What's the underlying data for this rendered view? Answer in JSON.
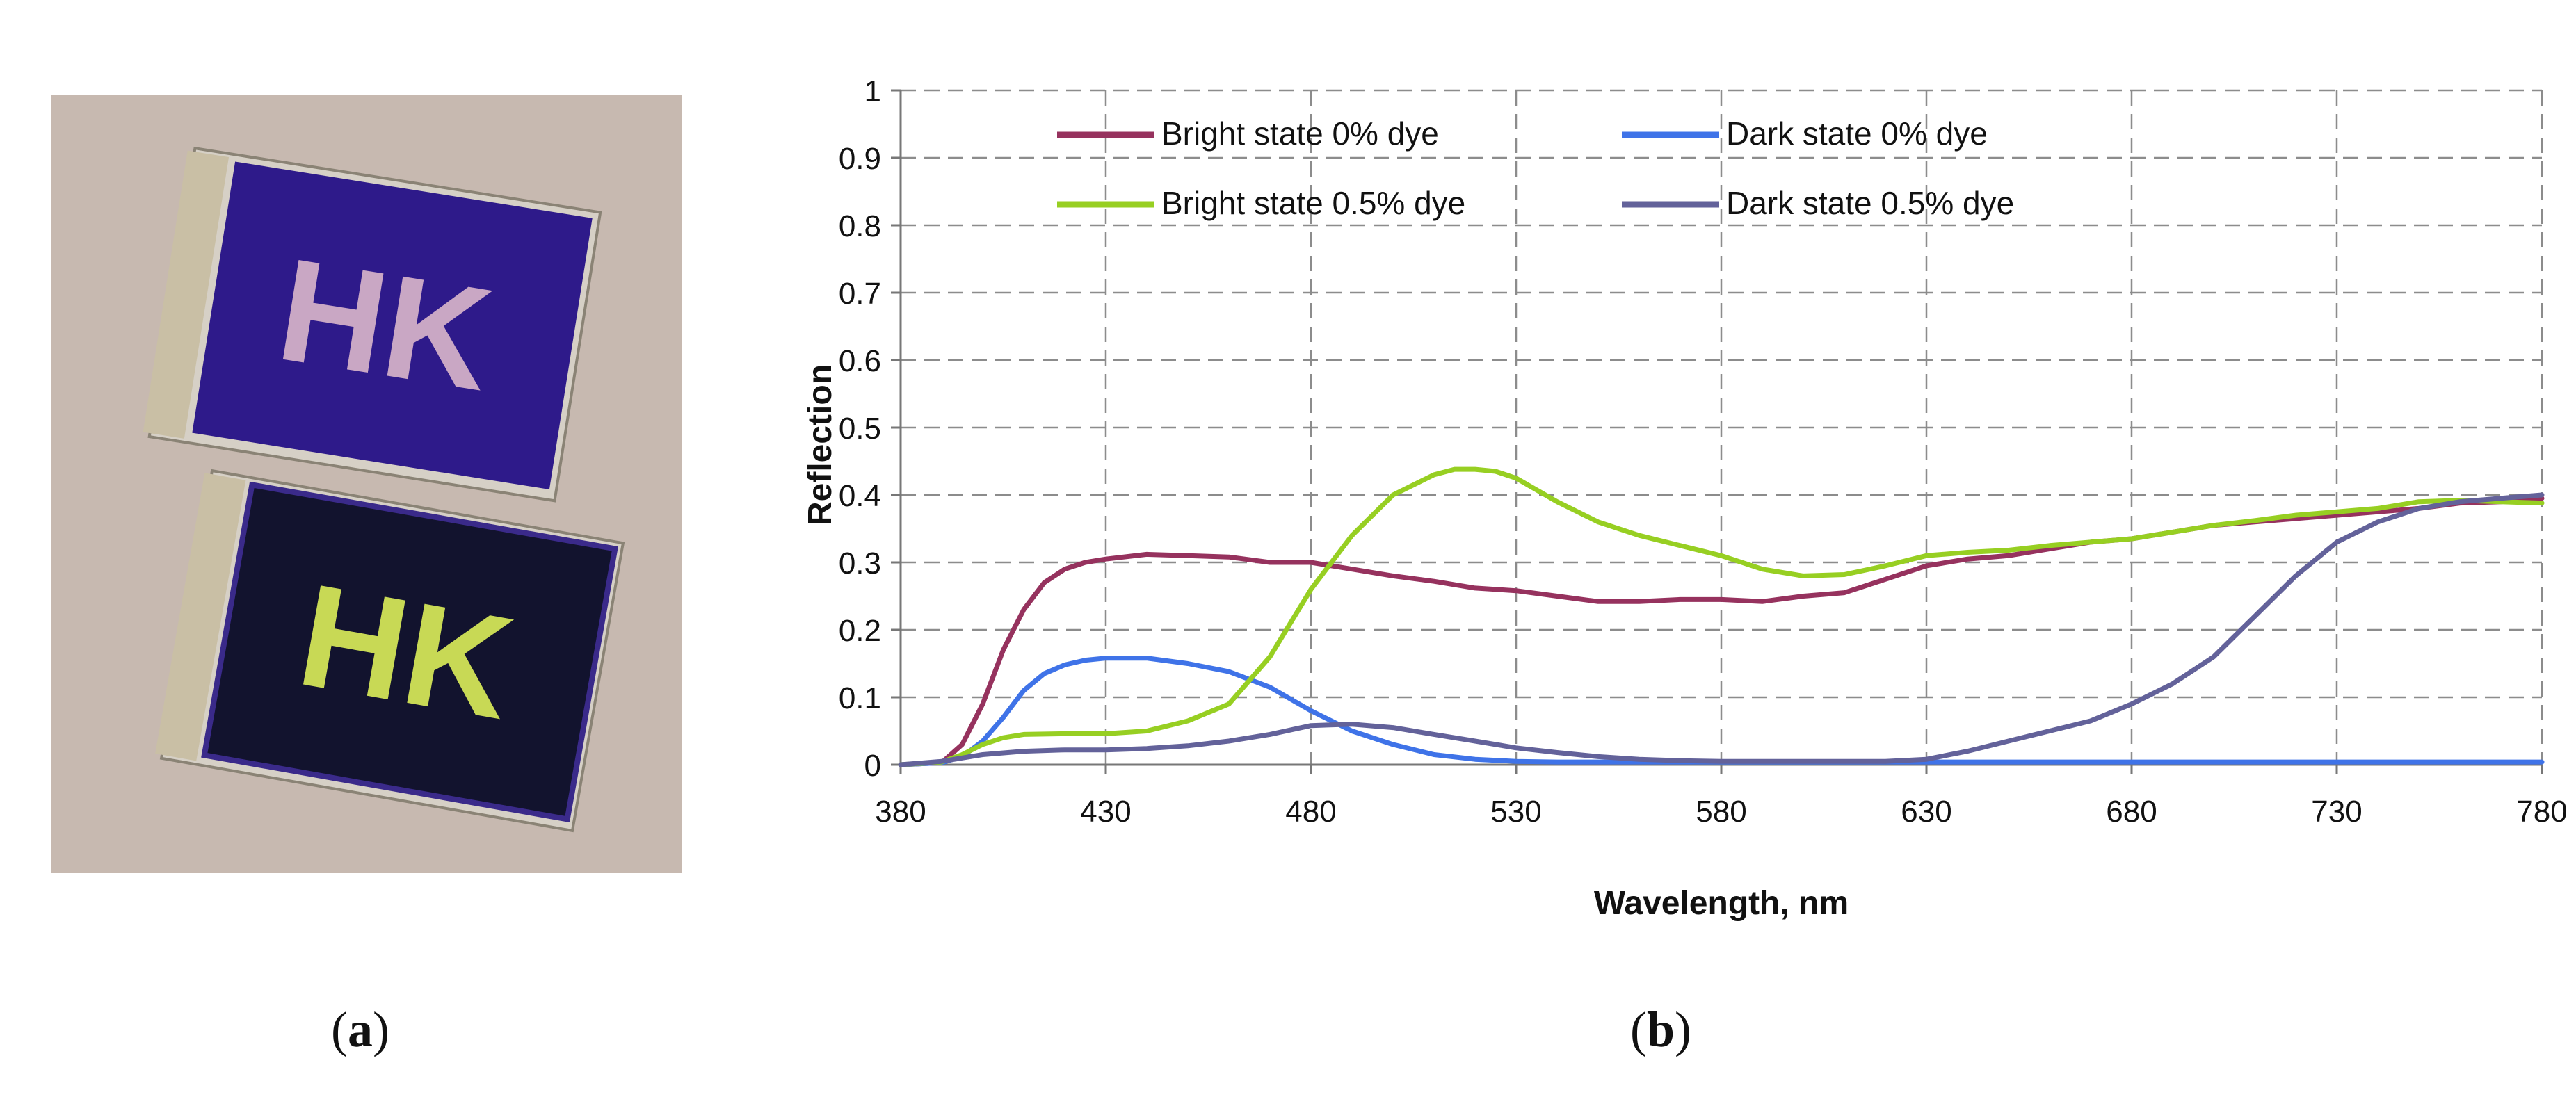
{
  "panels": {
    "a": {
      "caption_letter": "a",
      "sample_text_top": "HK",
      "sample_text_bottom": "HK"
    },
    "b": {
      "caption_letter": "b"
    }
  },
  "colors": {
    "background_photo": "#c7b9b0",
    "cell_blue": "#2e1a8a",
    "cell_dark": "#12132e",
    "bright_0": "#96325e",
    "dark_0": "#3f73e8",
    "bright_05": "#97cf22",
    "dark_05": "#63629a"
  },
  "chart_data": {
    "type": "line",
    "xlabel": "Wavelength, nm",
    "ylabel": "Reflection",
    "xlim": [
      380,
      780
    ],
    "ylim": [
      0,
      1
    ],
    "xticks": [
      "380",
      "430",
      "480",
      "530",
      "580",
      "630",
      "680",
      "730",
      "780"
    ],
    "yticks": [
      "0",
      "0.1",
      "0.2",
      "0.3",
      "0.4",
      "0.5",
      "0.6",
      "0.7",
      "0.8",
      "0.9",
      "1"
    ],
    "grid": true,
    "legend_position": "top",
    "series": [
      {
        "name": "Bright state 0% dye",
        "color": "#96325e",
        "x": [
          380,
          390,
          395,
          400,
          405,
          410,
          415,
          420,
          425,
          430,
          440,
          450,
          460,
          470,
          480,
          490,
          500,
          510,
          520,
          530,
          540,
          550,
          560,
          570,
          580,
          590,
          600,
          610,
          620,
          630,
          640,
          650,
          660,
          670,
          680,
          690,
          700,
          710,
          720,
          730,
          740,
          750,
          760,
          770,
          780
        ],
        "y": [
          0,
          0.003,
          0.03,
          0.09,
          0.17,
          0.23,
          0.27,
          0.29,
          0.3,
          0.305,
          0.312,
          0.31,
          0.308,
          0.3,
          0.3,
          0.29,
          0.28,
          0.272,
          0.262,
          0.258,
          0.25,
          0.242,
          0.242,
          0.245,
          0.245,
          0.242,
          0.25,
          0.255,
          0.275,
          0.295,
          0.305,
          0.31,
          0.32,
          0.33,
          0.335,
          0.345,
          0.355,
          0.36,
          0.365,
          0.37,
          0.375,
          0.38,
          0.388,
          0.39,
          0.395
        ]
      },
      {
        "name": "Dark state 0% dye",
        "color": "#3f73e8",
        "x": [
          380,
          390,
          395,
          400,
          405,
          410,
          415,
          420,
          425,
          430,
          440,
          450,
          460,
          470,
          480,
          490,
          500,
          510,
          520,
          530,
          540,
          550,
          560,
          570,
          580,
          600,
          630,
          650,
          680,
          700,
          730,
          780
        ],
        "y": [
          0,
          0.003,
          0.012,
          0.035,
          0.07,
          0.11,
          0.135,
          0.148,
          0.155,
          0.158,
          0.158,
          0.15,
          0.138,
          0.115,
          0.08,
          0.05,
          0.03,
          0.015,
          0.008,
          0.005,
          0.004,
          0.004,
          0.004,
          0.004,
          0.004,
          0.004,
          0.004,
          0.004,
          0.004,
          0.004,
          0.004,
          0.004
        ]
      },
      {
        "name": "Bright state 0.5% dye",
        "color": "#97cf22",
        "x": [
          380,
          390,
          395,
          400,
          405,
          410,
          420,
          430,
          440,
          450,
          460,
          470,
          480,
          490,
          500,
          510,
          515,
          520,
          525,
          530,
          540,
          550,
          560,
          570,
          580,
          590,
          600,
          610,
          620,
          630,
          640,
          650,
          660,
          670,
          680,
          690,
          700,
          710,
          720,
          730,
          740,
          750,
          760,
          770,
          780
        ],
        "y": [
          0,
          0.004,
          0.015,
          0.03,
          0.04,
          0.045,
          0.046,
          0.046,
          0.05,
          0.065,
          0.09,
          0.16,
          0.26,
          0.34,
          0.4,
          0.43,
          0.438,
          0.438,
          0.435,
          0.425,
          0.39,
          0.36,
          0.34,
          0.325,
          0.31,
          0.29,
          0.28,
          0.282,
          0.295,
          0.31,
          0.315,
          0.318,
          0.325,
          0.33,
          0.335,
          0.345,
          0.355,
          0.362,
          0.37,
          0.375,
          0.38,
          0.39,
          0.392,
          0.39,
          0.388
        ]
      },
      {
        "name": "Dark state 0.5% dye",
        "color": "#63629a",
        "x": [
          380,
          390,
          400,
          410,
          420,
          430,
          440,
          450,
          460,
          470,
          480,
          490,
          500,
          510,
          520,
          530,
          540,
          550,
          560,
          570,
          580,
          600,
          620,
          630,
          640,
          650,
          660,
          670,
          680,
          690,
          700,
          710,
          720,
          730,
          740,
          750,
          760,
          770,
          780
        ],
        "y": [
          0,
          0.005,
          0.015,
          0.02,
          0.022,
          0.022,
          0.024,
          0.028,
          0.035,
          0.045,
          0.058,
          0.06,
          0.055,
          0.045,
          0.035,
          0.025,
          0.018,
          0.012,
          0.008,
          0.006,
          0.005,
          0.005,
          0.005,
          0.008,
          0.02,
          0.035,
          0.05,
          0.065,
          0.09,
          0.12,
          0.16,
          0.22,
          0.28,
          0.33,
          0.36,
          0.38,
          0.39,
          0.395,
          0.4
        ]
      }
    ]
  }
}
